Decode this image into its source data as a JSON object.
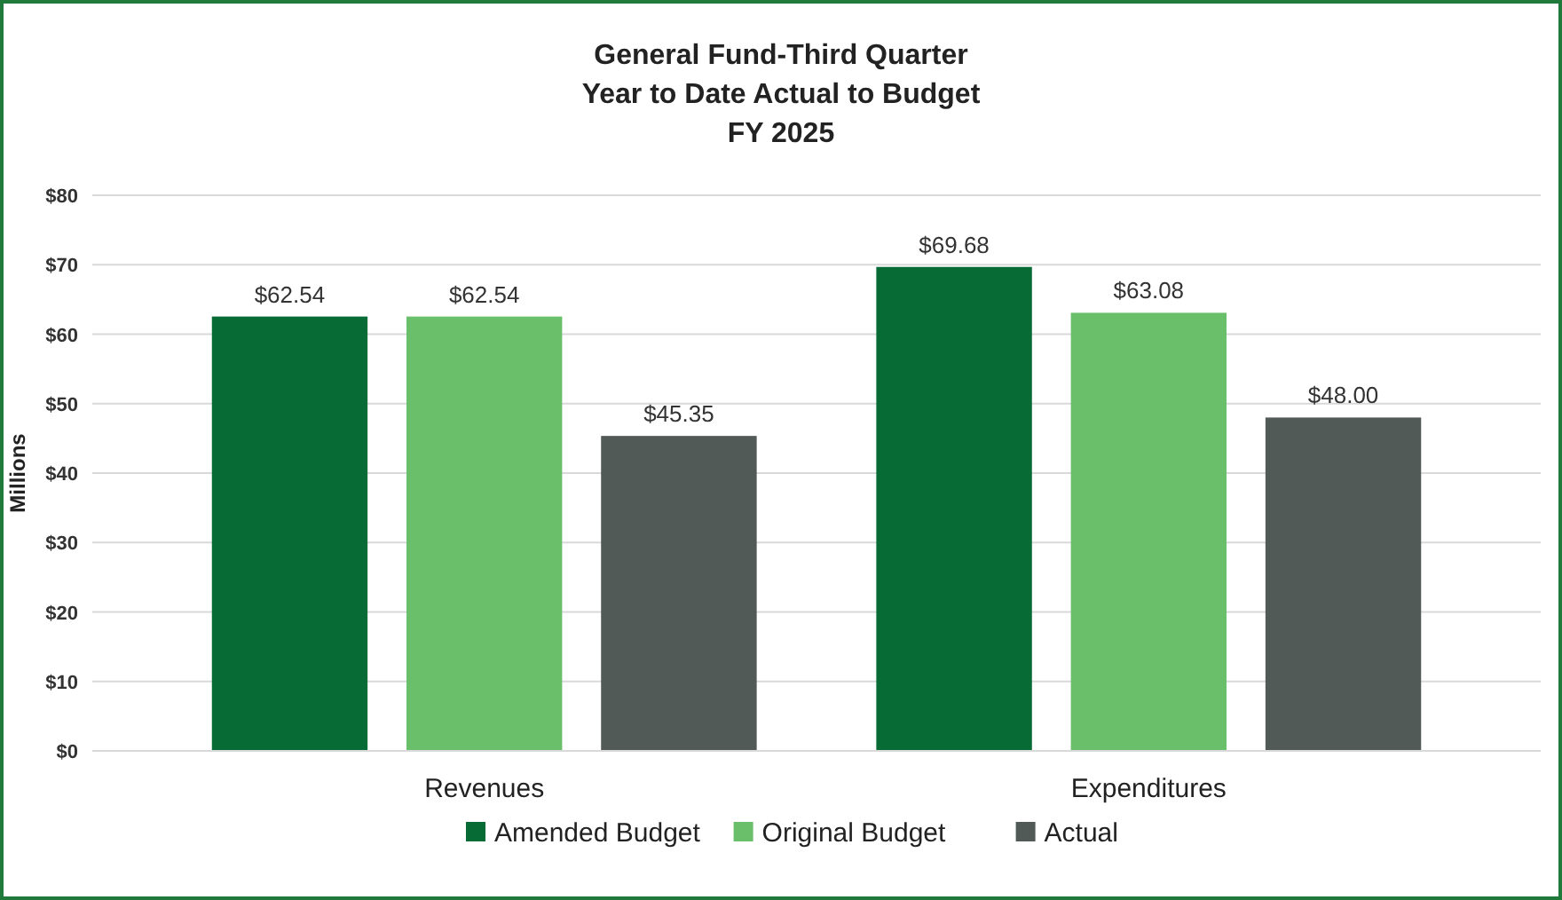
{
  "chart_data": {
    "type": "bar",
    "title": "General Fund-Third Quarter\nYear to Date Actual to Budget\nFY 2025",
    "ylabel": "Millions",
    "categories": [
      "Revenues",
      "Expenditures"
    ],
    "series": [
      {
        "name": "Amended Budget",
        "color": "#076b35",
        "values": [
          62.54,
          69.68
        ],
        "value_labels": [
          "$62.54",
          "$69.68"
        ]
      },
      {
        "name": "Original Budget",
        "color": "#6abf6b",
        "values": [
          62.54,
          63.08
        ],
        "value_labels": [
          "$62.54",
          "$63.08"
        ]
      },
      {
        "name": "Actual",
        "color": "#525a58",
        "values": [
          45.35,
          48.0
        ],
        "value_labels": [
          "$45.35",
          "$48.00"
        ]
      }
    ],
    "ylim": [
      0,
      80
    ],
    "yticks": [
      {
        "value": 0,
        "label": "$0"
      },
      {
        "value": 10,
        "label": "$10"
      },
      {
        "value": 20,
        "label": "$20"
      },
      {
        "value": 30,
        "label": "$30"
      },
      {
        "value": 40,
        "label": "$40"
      },
      {
        "value": 50,
        "label": "$50"
      },
      {
        "value": 60,
        "label": "$60"
      },
      {
        "value": 70,
        "label": "$70"
      },
      {
        "value": 80,
        "label": "$80"
      }
    ],
    "grid": "y",
    "legend": "bottom"
  }
}
